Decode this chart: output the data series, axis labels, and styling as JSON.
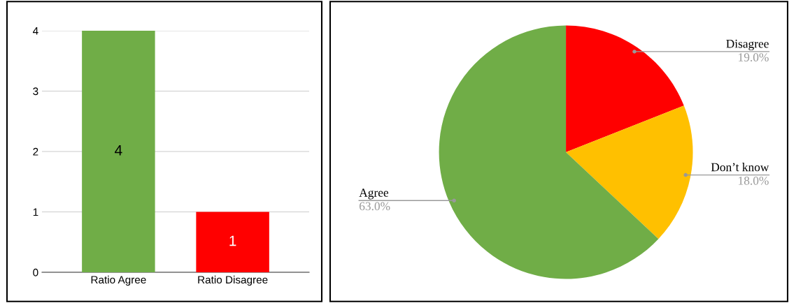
{
  "chart_data": [
    {
      "type": "bar",
      "categories": [
        "Ratio Agree",
        "Ratio Disagree"
      ],
      "values": [
        4,
        1
      ],
      "colors": [
        "#70ad47",
        "#ff0000"
      ],
      "ylim": [
        0,
        4
      ],
      "yticks": [
        0,
        1,
        2,
        3,
        4
      ],
      "grid": "y",
      "data_labels": true
    },
    {
      "type": "pie",
      "categories": [
        "Disagree",
        "Don’t know",
        "Agree"
      ],
      "values": [
        19,
        18,
        63
      ],
      "colors": [
        "#ff0000",
        "#ffc000",
        "#70ad47"
      ],
      "value_labels": [
        "19.0%",
        "18.0%",
        "63.0%"
      ]
    }
  ]
}
